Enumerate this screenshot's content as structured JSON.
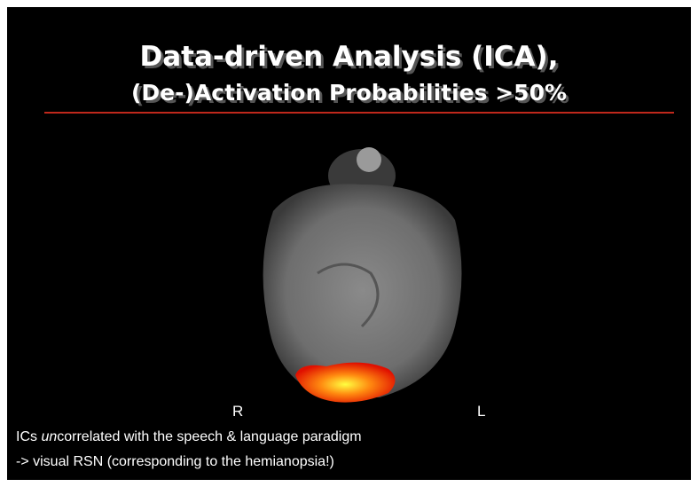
{
  "slide": {
    "title": {
      "line1": "Data-driven Analysis (ICA),",
      "line2": "(De-)Activation Probabilities >50%"
    },
    "image_labels": {
      "right": "R",
      "left": "L"
    },
    "caption": {
      "line1": [
        "ICs ",
        "un",
        "correlated with the speech & language paradigm"
      ],
      "line2": "-> visual RSN (corresponding to the hemianopsia!)"
    }
  }
}
